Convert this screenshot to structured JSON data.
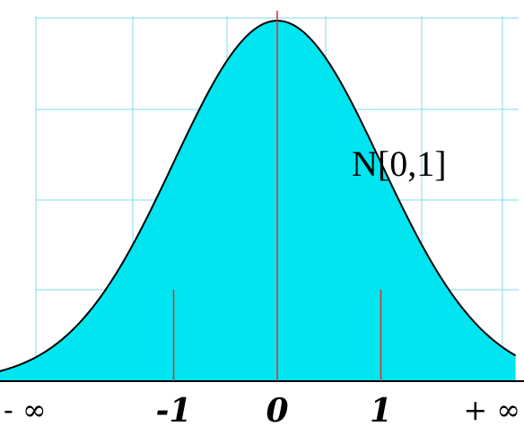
{
  "chart_data": {
    "type": "area",
    "title": "",
    "xlabel": "",
    "ylabel": "",
    "distribution": {
      "name": "normal",
      "mean": 0,
      "sd": 1
    },
    "xlim": [
      -3.1,
      2.3
    ],
    "ylim": [
      0,
      0.4
    ],
    "grid": true,
    "x_ticks": [
      -1,
      0,
      1
    ],
    "x_tick_labels": [
      "-1",
      "0",
      "1"
    ],
    "left_end_label": "- ∞",
    "right_end_label": "+ ∞",
    "vertical_markers": [
      -1,
      0,
      1
    ],
    "annotation": "N[0,1]",
    "colors": {
      "fill": "#00e5ef",
      "curve": "#000000",
      "grid": "#7fd9ef",
      "markers": "#e8262a"
    }
  }
}
